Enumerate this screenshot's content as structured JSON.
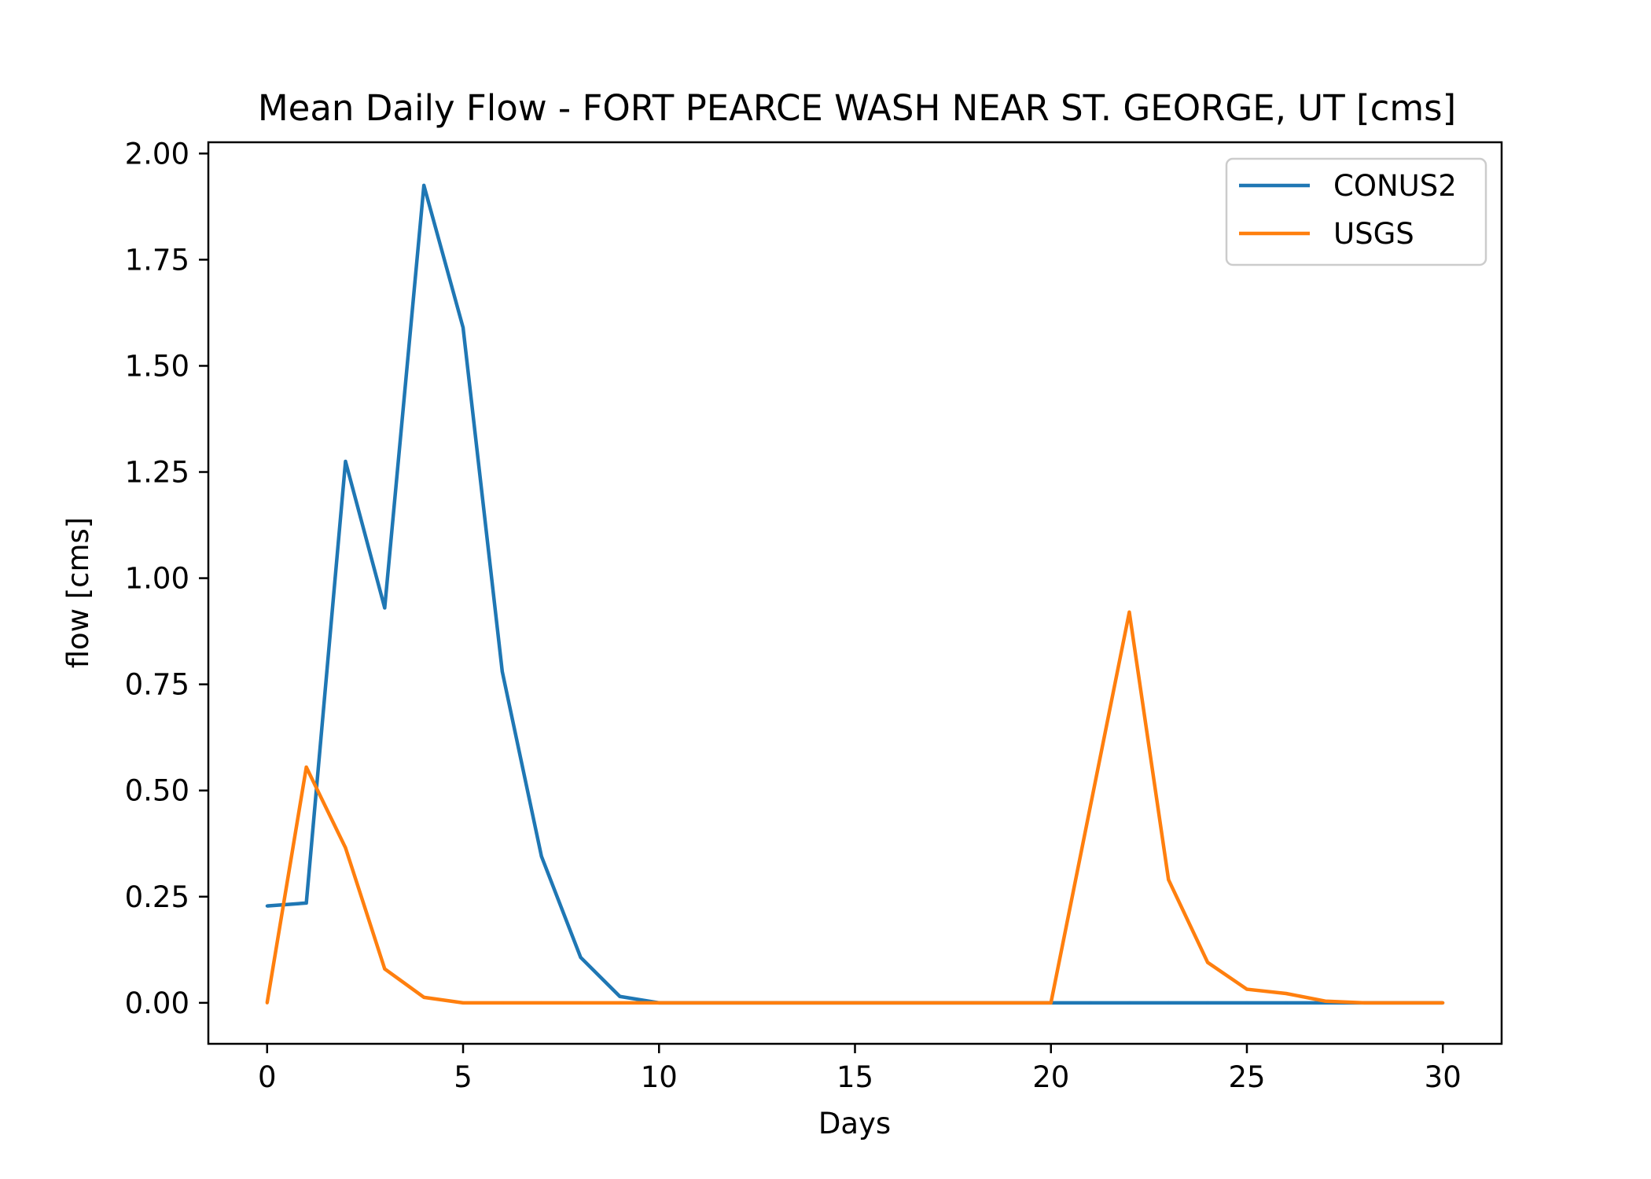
{
  "chart_data": {
    "type": "line",
    "title": "Mean Daily Flow - FORT PEARCE WASH NEAR ST. GEORGE, UT [cms]",
    "xlabel": "Days",
    "ylabel": "flow [cms]",
    "xlim": [
      -1.5,
      31.5
    ],
    "ylim": [
      -0.0965,
      2.0265
    ],
    "x_ticks": [
      0,
      5,
      10,
      15,
      20,
      25,
      30
    ],
    "x_tick_labels": [
      "0",
      "5",
      "10",
      "15",
      "20",
      "25",
      "30"
    ],
    "y_ticks": [
      0,
      0.25,
      0.5,
      0.75,
      1.0,
      1.25,
      1.5,
      1.75,
      2.0
    ],
    "y_tick_labels": [
      "0.00",
      "0.25",
      "0.50",
      "0.75",
      "1.00",
      "1.25",
      "1.50",
      "1.75",
      "2.00"
    ],
    "grid": false,
    "legend_position": "top-right",
    "x": [
      0,
      1,
      2,
      3,
      4,
      5,
      6,
      7,
      8,
      9,
      10,
      11,
      12,
      13,
      14,
      15,
      16,
      17,
      18,
      19,
      20,
      21,
      22,
      23,
      24,
      25,
      26,
      27,
      28,
      29,
      30
    ],
    "series": [
      {
        "name": "CONUS2",
        "color": "#1f77b4",
        "values": [
          0.228,
          0.235,
          1.275,
          0.93,
          1.925,
          1.59,
          0.78,
          0.345,
          0.107,
          0.015,
          0.0,
          0.0,
          0.0,
          0.0,
          0.0,
          0.0,
          0.0,
          0.0,
          0.0,
          0.0,
          0.0,
          0.0,
          0.0,
          0.0,
          0.0,
          0.0,
          0.0,
          0.0,
          0.0,
          0.0,
          0.0
        ]
      },
      {
        "name": "USGS",
        "color": "#ff7f0e",
        "values": [
          0.0,
          0.555,
          0.365,
          0.08,
          0.013,
          0.0,
          0.0,
          0.0,
          0.0,
          0.0,
          0.0,
          0.0,
          0.0,
          0.0,
          0.0,
          0.0,
          0.0,
          0.0,
          0.0,
          0.0,
          0.0,
          0.46,
          0.92,
          0.29,
          0.095,
          0.032,
          0.022,
          0.004,
          0.0,
          0.0,
          0.0
        ]
      }
    ]
  }
}
